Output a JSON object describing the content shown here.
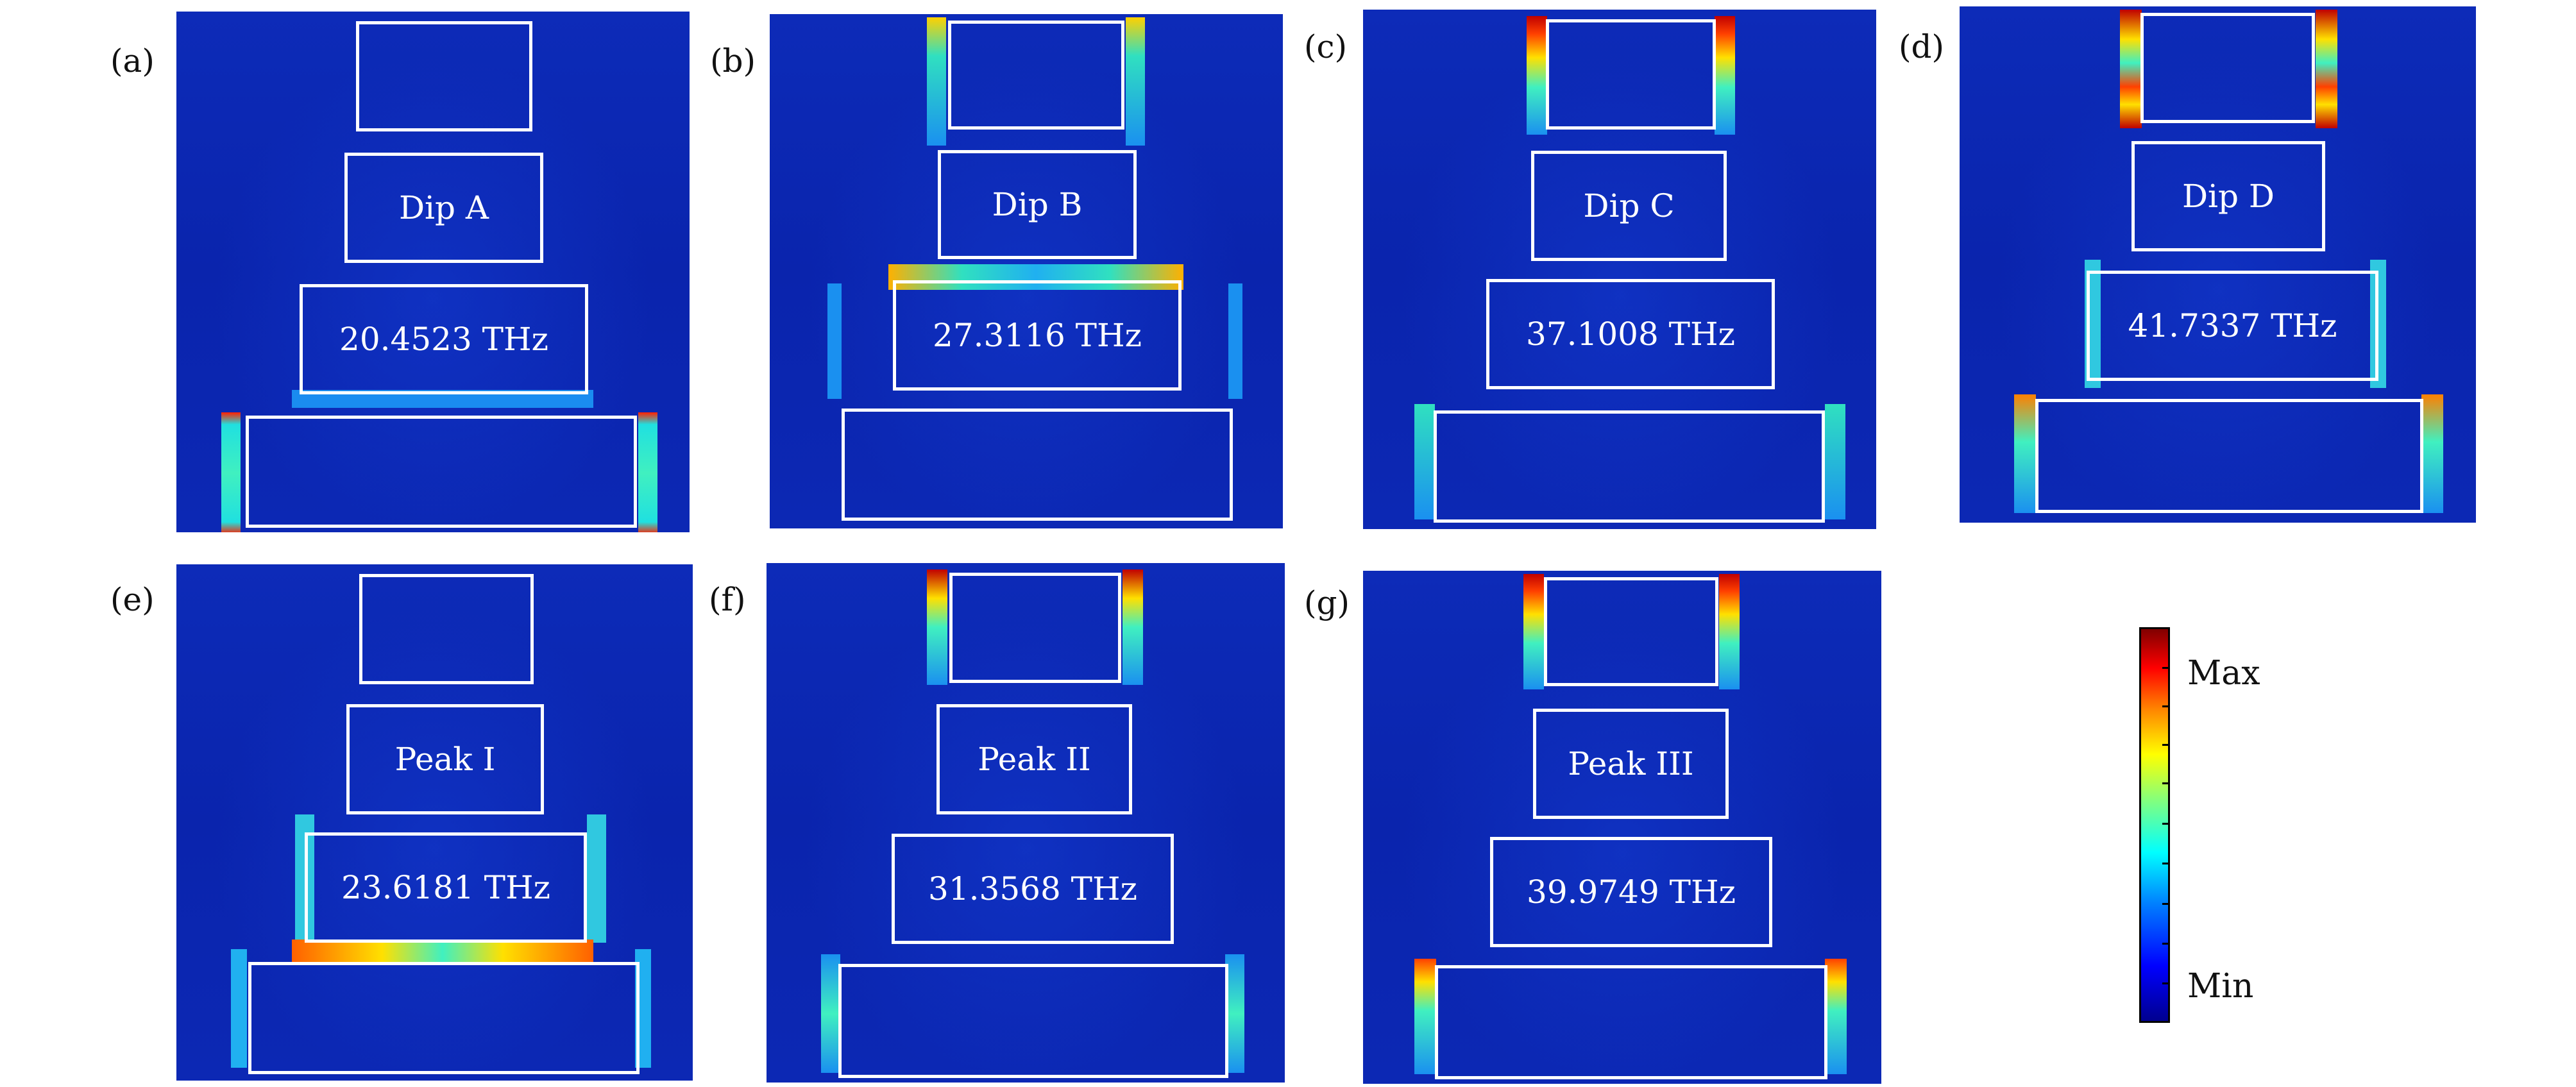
{
  "panels": [
    {
      "id": "a",
      "label": "(a)",
      "name": "Dip A",
      "freq": "20.4523 THz"
    },
    {
      "id": "b",
      "label": "(b)",
      "name": "Dip B",
      "freq": "27.3116 THz"
    },
    {
      "id": "c",
      "label": "(c)",
      "name": "Dip C",
      "freq": "37.1008 THz"
    },
    {
      "id": "d",
      "label": "(d)",
      "name": "Dip D",
      "freq": "41.7337 THz"
    },
    {
      "id": "e",
      "label": "(e)",
      "name": "Peak I",
      "freq": "23.6181 THz"
    },
    {
      "id": "f",
      "label": "(f)",
      "name": "Peak II",
      "freq": "31.3568 THz"
    },
    {
      "id": "g",
      "label": "(g)",
      "name": "Peak III",
      "freq": "39.9749 THz"
    }
  ],
  "colorbar": {
    "max_label": "Max",
    "min_label": "Min",
    "colors": [
      "#00008f",
      "#0000ff",
      "#0080ff",
      "#00ffff",
      "#ffff00",
      "#ff8000",
      "#ff0000",
      "#800000"
    ]
  }
}
